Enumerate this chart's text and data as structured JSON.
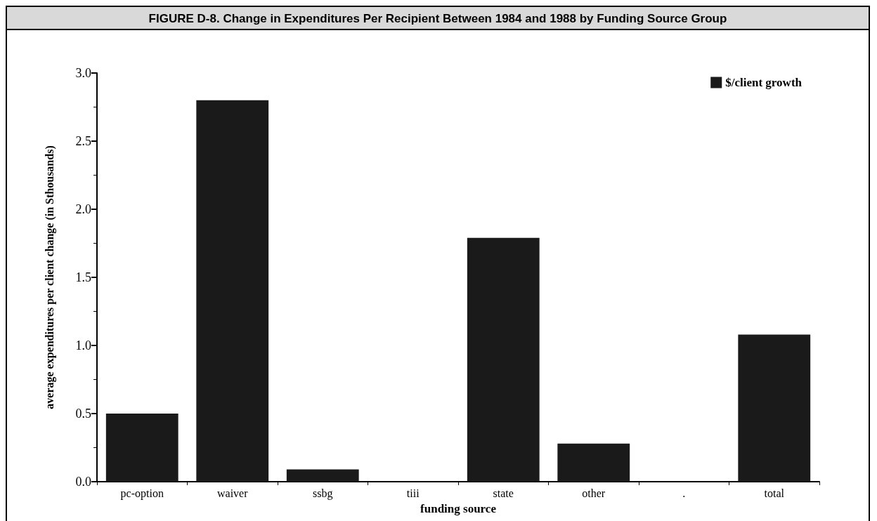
{
  "chart_data": {
    "type": "bar",
    "title": "FIGURE D-8. Change in Expenditures Per Recipient Between 1984 and 1988 by Funding Source Group",
    "xlabel": "funding source",
    "ylabel": "average expenditures per client change (in Sthousands)",
    "categories": [
      "pc-option",
      "waiver",
      "ssbg",
      "tiii",
      "state",
      "other",
      ".",
      "total"
    ],
    "series": [
      {
        "name": "$/client growth",
        "color": "#1a1a1a",
        "values": [
          0.5,
          2.8,
          0.09,
          0,
          1.79,
          0.28,
          0,
          1.08
        ]
      }
    ],
    "ylim": [
      0,
      3
    ],
    "yticks": [
      {
        "value": 0,
        "label": "0.0"
      },
      {
        "value": 0.5,
        "label": "0.5"
      },
      {
        "value": 1,
        "label": "1.0"
      },
      {
        "value": 1.5,
        "label": "1.5"
      },
      {
        "value": 2,
        "label": "2.0"
      },
      {
        "value": 2.5,
        "label": "2.5"
      },
      {
        "value": 3,
        "label": "3.0"
      }
    ],
    "grid": false,
    "legend": "top right"
  }
}
